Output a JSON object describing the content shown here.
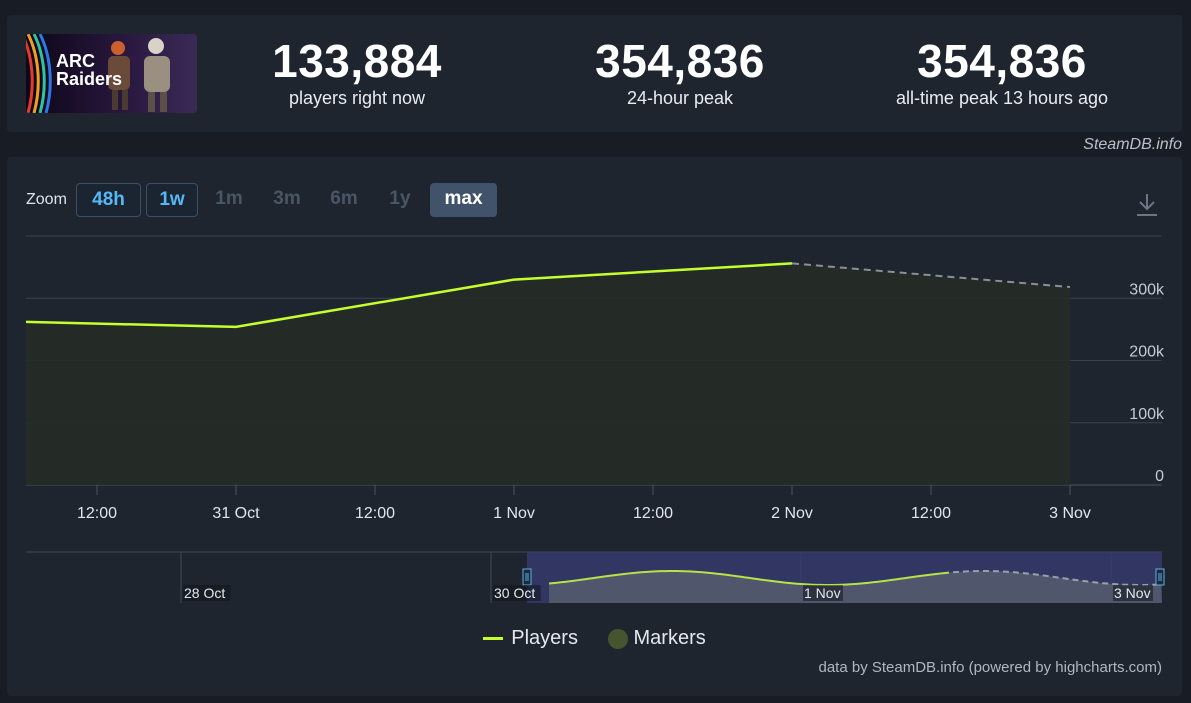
{
  "stats": [
    {
      "value": "133,884",
      "label": "players right now"
    },
    {
      "value": "354,836",
      "label": "24-hour peak"
    },
    {
      "value": "354,836",
      "label": "all-time peak 13 hours ago"
    }
  ],
  "game": {
    "logo_text_1": "ARC",
    "logo_text_2": "Raiders"
  },
  "attribution": "SteamDB.info",
  "zoom": {
    "label": "Zoom",
    "buttons": [
      "48h",
      "1w",
      "1m",
      "3m",
      "6m",
      "1y",
      "max"
    ],
    "active": "max"
  },
  "icons": {
    "download": "download-icon"
  },
  "colors": {
    "players": "#c4ff2e",
    "markers": "#46552f",
    "projection": "#8a8f98",
    "navigator_window": "#353b6b"
  },
  "chart_data": {
    "type": "line",
    "x_tick_labels": [
      "12:00",
      "31 Oct",
      "12:00",
      "1 Nov",
      "12:00",
      "2 Nov",
      "12:00",
      "3 Nov"
    ],
    "y_tick_labels": [
      "0",
      "100k",
      "200k",
      "300k"
    ],
    "ylim": [
      0,
      400000
    ],
    "series": [
      {
        "name": "Players",
        "x": [
          "2025-10-30 00:00",
          "2025-10-31 00:00",
          "2025-11-01 00:00",
          "2025-11-02 00:00"
        ],
        "y": [
          262000,
          254000,
          330000,
          356000
        ]
      },
      {
        "name": "Markers",
        "x": [],
        "y": []
      }
    ],
    "projection": {
      "x": [
        "2025-11-02 00:00",
        "2025-11-03 00:00"
      ],
      "y": [
        356000,
        318000
      ]
    },
    "navigator": {
      "tick_labels": [
        "28 Oct",
        "30 Oct",
        "1 Nov",
        "3 Nov"
      ]
    }
  },
  "legend": [
    "Players",
    "Markers"
  ],
  "credits": "data by SteamDB.info (powered by highcharts.com)"
}
